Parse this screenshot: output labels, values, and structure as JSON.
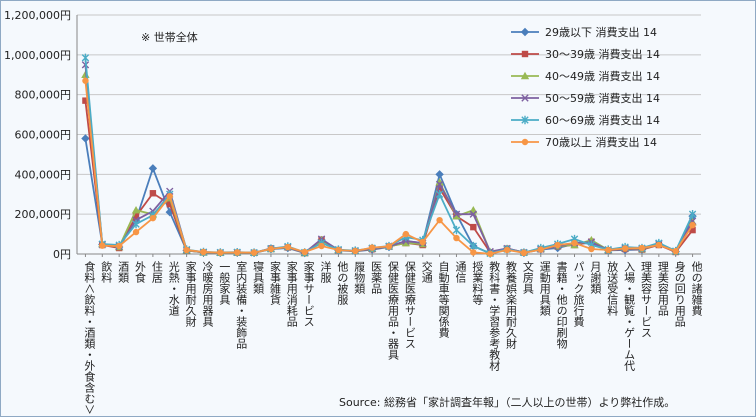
{
  "note": "※ 世帯全体",
  "source": "Source: 総務省「家計調査年報」（二人以上の世帯）より弊社作成。",
  "chart_data": {
    "type": "line",
    "ylim": [
      0,
      1200000
    ],
    "yticks": [
      "0円",
      "200,000円",
      "400,000円",
      "600,000円",
      "800,000円",
      "1,000,000円",
      "1,200,000円"
    ],
    "grid": true,
    "legend_position": "top-right",
    "categories": [
      "食料＜飲料・酒類・外食含む＞",
      "飲料",
      "酒類",
      "外食",
      "住居",
      "光熱・水道",
      "家事用耐久財",
      "冷暖房用器具",
      "一般家具",
      "室内装備・装飾品",
      "寝具類",
      "家事雑貨",
      "家事用消耗品",
      "家事サービス",
      "洋服",
      "他の被服",
      "履物類",
      "医薬品",
      "保健医療用品・器具",
      "保健医療サービス",
      "交通",
      "自動車等関係費",
      "通信",
      "授業料等",
      "教科書・学習参考教材",
      "教養娯楽用耐久財",
      "文房具",
      "運動用具類",
      "書籍・他の印刷物",
      "パック旅行費",
      "月謝類",
      "放送受信料",
      "入場・観覧・ゲーム代",
      "理美容サービス",
      "理美容用品",
      "身の回り用品",
      "他の諸雑費"
    ],
    "series": [
      {
        "name": "29歳以下 消費支出 14",
        "color": "#4a7ebb",
        "values": [
          580000,
          48000,
          35000,
          170000,
          430000,
          210000,
          18000,
          8000,
          6000,
          7000,
          6000,
          24000,
          30000,
          5000,
          70000,
          18000,
          13000,
          22000,
          35000,
          65000,
          55000,
          400000,
          200000,
          40000,
          3000,
          25000,
          6000,
          22000,
          30000,
          50000,
          55000,
          18000,
          20000,
          22000,
          50000,
          12000,
          190000
        ]
      },
      {
        "name": "30～39歳 消費支出 14",
        "color": "#be4b48",
        "values": [
          770000,
          45000,
          30000,
          190000,
          305000,
          250000,
          17000,
          8000,
          6000,
          7000,
          6000,
          28000,
          33000,
          5000,
          72000,
          20000,
          15000,
          24000,
          38000,
          55000,
          45000,
          330000,
          190000,
          135000,
          8000,
          27000,
          7000,
          24000,
          38000,
          45000,
          62000,
          19000,
          25000,
          22000,
          45000,
          10000,
          120000
        ]
      },
      {
        "name": "40～49歳 消費支出 14",
        "color": "#98b954",
        "values": [
          900000,
          50000,
          35000,
          220000,
          200000,
          280000,
          18000,
          8000,
          6000,
          7000,
          6000,
          25000,
          35000,
          5000,
          70000,
          20000,
          15000,
          26000,
          38000,
          55000,
          50000,
          360000,
          190000,
          220000,
          10000,
          27000,
          8000,
          25000,
          40000,
          45000,
          70000,
          20000,
          28000,
          24000,
          50000,
          12000,
          160000
        ]
      },
      {
        "name": "50～59歳 消費支出 14",
        "color": "#7d60a0",
        "values": [
          950000,
          48000,
          38000,
          170000,
          215000,
          315000,
          20000,
          9000,
          7000,
          8000,
          6000,
          26000,
          35000,
          6000,
          75000,
          20000,
          15000,
          27000,
          38000,
          65000,
          55000,
          350000,
          200000,
          200000,
          12000,
          28000,
          8000,
          24000,
          40000,
          55000,
          60000,
          20000,
          28000,
          26000,
          52000,
          13000,
          165000
        ]
      },
      {
        "name": "60～69歳 消費支出 14",
        "color": "#4bacc6",
        "values": [
          985000,
          50000,
          45000,
          150000,
          195000,
          300000,
          22000,
          10000,
          8000,
          9000,
          7000,
          27000,
          38000,
          8000,
          55000,
          22000,
          17000,
          30000,
          40000,
          85000,
          70000,
          300000,
          120000,
          40000,
          3000,
          24000,
          7000,
          30000,
          50000,
          75000,
          45000,
          22000,
          35000,
          30000,
          55000,
          15000,
          200000
        ]
      },
      {
        "name": "70歳以上 消費支出 14",
        "color": "#f79646",
        "values": [
          870000,
          42000,
          40000,
          110000,
          180000,
          290000,
          20000,
          10000,
          7000,
          8000,
          7000,
          25000,
          35000,
          10000,
          40000,
          20000,
          15000,
          32000,
          38000,
          100000,
          60000,
          170000,
          80000,
          8000,
          1000,
          20000,
          6000,
          22000,
          45000,
          55000,
          25000,
          20000,
          28000,
          30000,
          45000,
          14000,
          145000
        ]
      }
    ]
  }
}
